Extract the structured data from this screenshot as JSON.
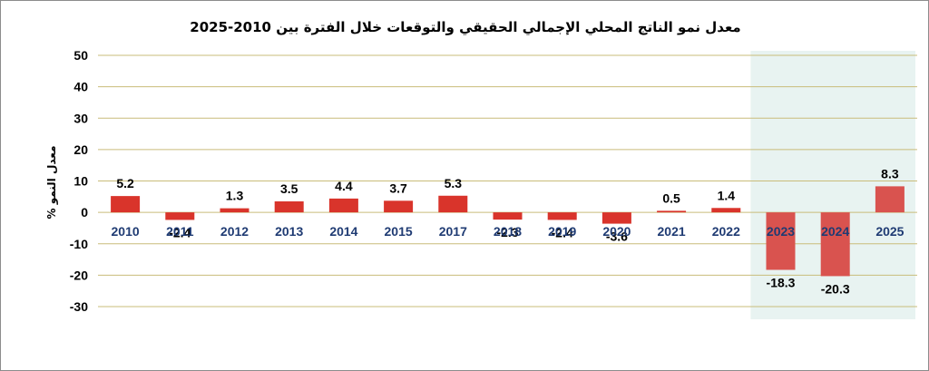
{
  "chart_data": {
    "type": "bar",
    "title": "معدل نمو الناتج المحلي الإجمالي الحقيقي والتوقعات خلال الفترة بين 2010-2025",
    "ylabel": "معدل النمو %",
    "xlabel": "",
    "categories": [
      "2010",
      "2011",
      "2012",
      "2013",
      "2014",
      "2015",
      "2017",
      "2018",
      "2019",
      "2020",
      "2021",
      "2022",
      "2023",
      "2024",
      "2025"
    ],
    "values": [
      5.2,
      -2.4,
      1.3,
      3.5,
      4.4,
      3.7,
      5.3,
      -2.3,
      -2.4,
      -3.6,
      0.5,
      1.4,
      -18.3,
      -20.3,
      8.3
    ],
    "value_labels": [
      "5.2",
      "-2.4",
      "1.3",
      "3.5",
      "4.4",
      "3.7",
      "5.3",
      "-2.3",
      "-2.4",
      "-3.6",
      "0.5",
      "1.4",
      "-18.3",
      "-20.3",
      "8.3"
    ],
    "ylim": [
      -30,
      50
    ],
    "yticks": [
      "50",
      "40",
      "30",
      "20",
      "10",
      "0",
      "-10",
      "-20",
      "-30"
    ],
    "grid": true,
    "forecast_highlight": [
      "2023",
      "2024",
      "2025"
    ],
    "colors": {
      "bar": "#d9342b",
      "bar_forecast": "#d9534f",
      "highlight_bg": "#e8f3f1",
      "gridline": "#c9bc7a",
      "category_label": "#1f3b73",
      "text": "#000000"
    }
  }
}
